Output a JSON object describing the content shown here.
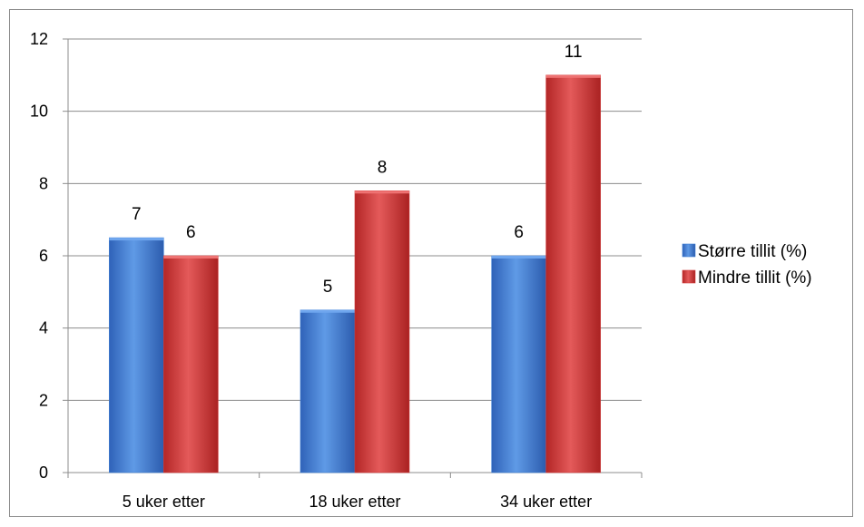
{
  "chart_data": {
    "type": "bar",
    "title": "",
    "xlabel": "",
    "ylabel": "",
    "categories": [
      "5 uker etter",
      "18 uker etter",
      "34 uker etter"
    ],
    "series": [
      {
        "name": "Større tillit (%)",
        "values": [
          6.5,
          4.5,
          6
        ],
        "labels": [
          "7",
          "5",
          "6"
        ],
        "color": "#3f7fd4"
      },
      {
        "name": "Mindre tillit (%)",
        "values": [
          6,
          7.8,
          11
        ],
        "labels": [
          "6",
          "8",
          "11"
        ],
        "color": "#d03a3a"
      }
    ],
    "ylim": [
      0,
      12
    ],
    "yticks": [
      0,
      2,
      4,
      6,
      8,
      10,
      12
    ],
    "grid": true,
    "legend": "right"
  }
}
